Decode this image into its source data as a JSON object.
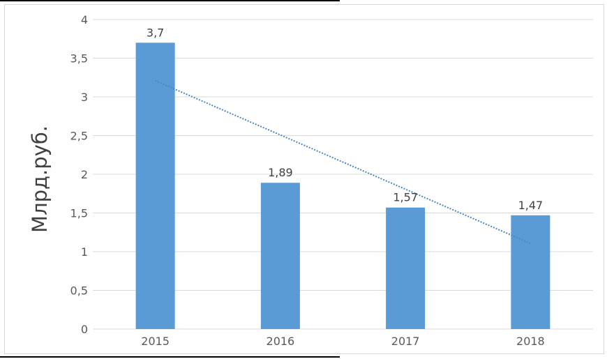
{
  "chart_data": {
    "type": "bar",
    "categories": [
      "2015",
      "2016",
      "2017",
      "2018"
    ],
    "values": [
      3.7,
      1.89,
      1.57,
      1.47
    ],
    "value_labels": [
      "3,7",
      "1,89",
      "1,57",
      "1,47"
    ],
    "title": "",
    "xlabel": "",
    "ylabel": "Млрд.руб.",
    "ylim": [
      0,
      4
    ],
    "yticks": [
      0,
      0.5,
      1,
      1.5,
      2,
      2.5,
      3,
      3.5,
      4
    ],
    "ytick_labels": [
      "0",
      "0,5",
      "1",
      "1,5",
      "2",
      "2,5",
      "3",
      "3,5",
      "4"
    ],
    "grid": true,
    "legend": "none",
    "trendline": {
      "type": "linear",
      "style": "dotted"
    },
    "colors": {
      "bar": "#5b9bd5",
      "trendline": "#4a86c5",
      "grid": "#d9d9d9"
    }
  }
}
